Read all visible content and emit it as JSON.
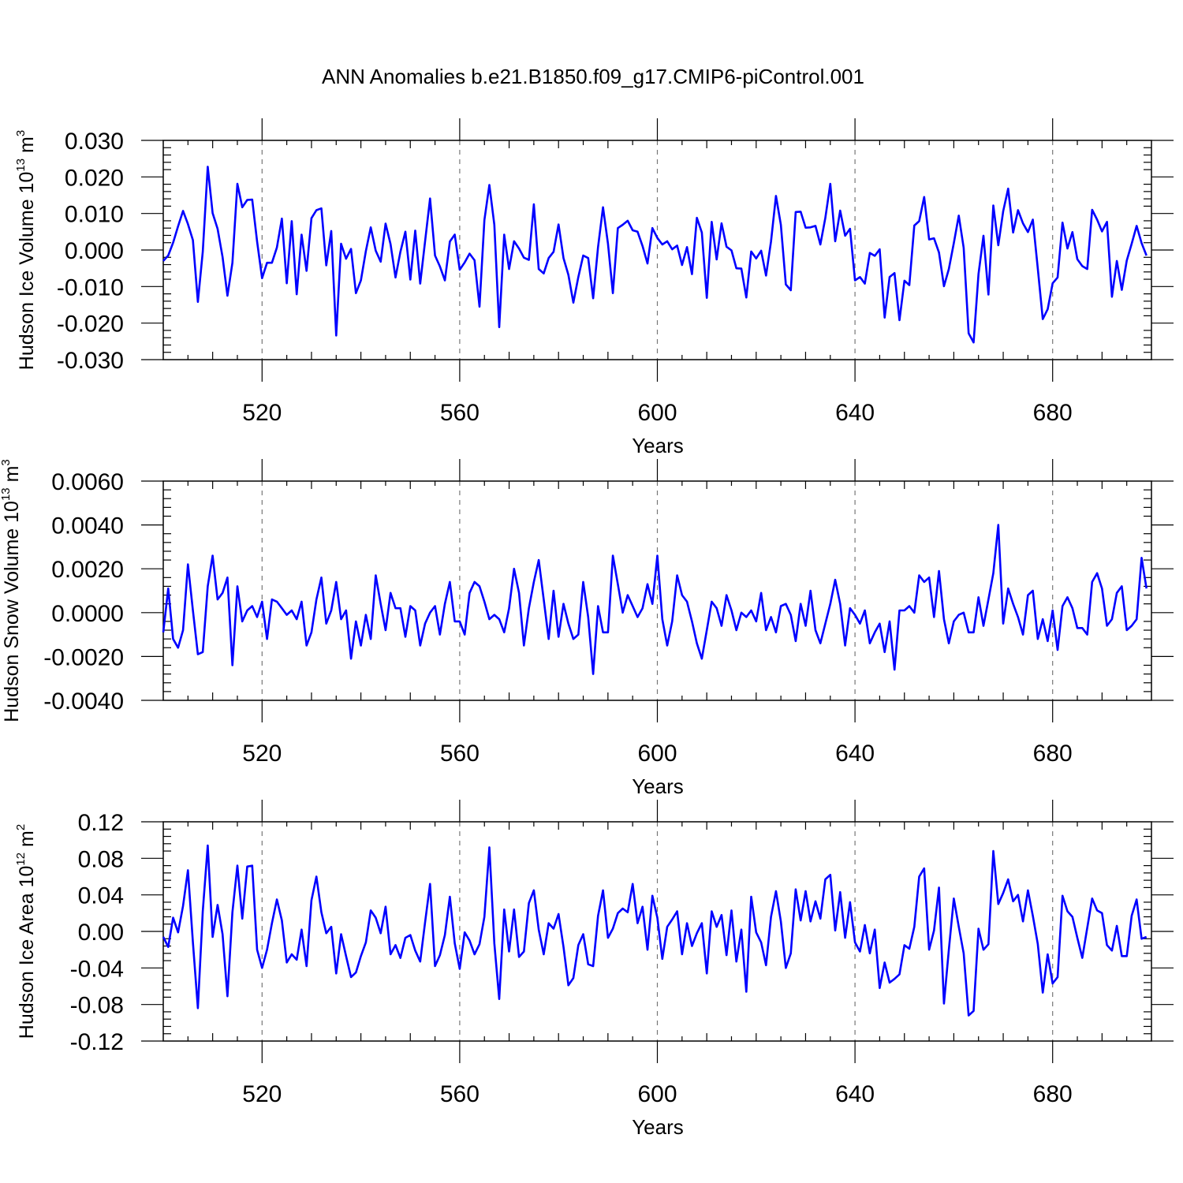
{
  "title": "ANN Anomalies b.e21.B1850.f09_g17.CMIP6-piControl.001",
  "colors": {
    "series": "#0000ff",
    "axis": "#000000",
    "grid": "#777777"
  },
  "chart_data": [
    {
      "type": "line",
      "ylabel": {
        "main": "Hudson Ice Volume 10",
        "exponent": "13",
        "unit": " m",
        "unit_exponent": "3"
      },
      "xlabel": "Years",
      "xlim": [
        500,
        700
      ],
      "xticks": [
        520,
        560,
        600,
        640,
        680
      ],
      "xtick_labels": [
        "520",
        "560",
        "600",
        "640",
        "680"
      ],
      "ylim": [
        -0.03,
        0.03
      ],
      "yticks": [
        0.03,
        0.02,
        0.01,
        0.0,
        -0.01,
        -0.02,
        -0.03
      ],
      "ytick_labels": [
        "0.030",
        "0.020",
        "0.010",
        "0.000",
        "-0.010",
        "-0.020",
        "-0.030"
      ],
      "grid_x": [
        520,
        560,
        600,
        640,
        680
      ],
      "series": [
        {
          "name": "Hudson Ice Volume anomaly",
          "x_start": 500,
          "x_step": 1,
          "values": [
            -0.003,
            -0.0015,
            0.002,
            0.0065,
            0.0107,
            0.0071,
            0.0027,
            -0.0142,
            -0.0005,
            0.0228,
            0.0101,
            0.0058,
            -0.0019,
            -0.0125,
            -0.0035,
            0.0181,
            0.0117,
            0.0137,
            0.0138,
            0.0023,
            -0.0077,
            -0.0035,
            -0.0035,
            0.0007,
            0.0086,
            -0.0091,
            0.0079,
            -0.0121,
            0.0042,
            -0.0057,
            0.0087,
            0.0109,
            0.0114,
            -0.0042,
            0.0052,
            -0.0234,
            0.0017,
            -0.0024,
            0.0003,
            -0.0118,
            -0.0083,
            -0.0003,
            0.0062,
            -0.0002,
            -0.0032,
            0.0072,
            0.0016,
            -0.0075,
            -0.0005,
            0.005,
            -0.0081,
            0.0053,
            -0.0092,
            0.0024,
            0.0141,
            -0.0015,
            -0.0045,
            -0.0083,
            0.0023,
            0.0042,
            -0.0054,
            -0.0034,
            -0.001,
            -0.0028,
            -0.0155,
            0.0082,
            0.0178,
            0.0069,
            -0.0211,
            0.0042,
            -0.0052,
            0.0024,
            0.0004,
            -0.0021,
            -0.0027,
            0.0125,
            -0.0052,
            -0.0064,
            -0.0022,
            -0.0005,
            0.007,
            -0.0022,
            -0.0068,
            -0.0144,
            -0.0074,
            -0.0015,
            -0.0022,
            -0.0132,
            0.0008,
            0.0117,
            0.0017,
            -0.0118,
            0.006,
            0.0069,
            0.008,
            0.0054,
            0.005,
            0.0011,
            -0.0037,
            0.006,
            0.0033,
            0.0015,
            0.0024,
            0.0002,
            0.0012,
            -0.0041,
            0.0008,
            -0.0066,
            0.0088,
            0.0048,
            -0.0131,
            0.0077,
            -0.0026,
            0.0073,
            0.0009,
            -0.0001,
            -0.005,
            -0.0051,
            -0.013,
            -0.0004,
            -0.0023,
            -0.0002,
            -0.007,
            0.0023,
            0.0148,
            0.0069,
            -0.0094,
            -0.011,
            0.0104,
            0.0105,
            0.0061,
            0.0062,
            0.0066,
            0.0015,
            0.0088,
            0.0181,
            0.0024,
            0.0108,
            0.0039,
            0.0058,
            -0.0083,
            -0.0074,
            -0.0092,
            -0.0008,
            -0.0016,
            0.0002,
            -0.0185,
            -0.0074,
            -0.0063,
            -0.0192,
            -0.0084,
            -0.0096,
            0.0067,
            0.0079,
            0.0145,
            0.0029,
            0.0032,
            -0.0007,
            -0.0099,
            -0.0052,
            0.0019,
            0.0094,
            0.0006,
            -0.0228,
            -0.0253,
            -0.0066,
            0.0039,
            -0.0122,
            0.0122,
            0.0013,
            0.0106,
            0.0168,
            0.0048,
            0.0109,
            0.0073,
            0.0049,
            0.0083,
            -0.0051,
            -0.0189,
            -0.0162,
            -0.0091,
            -0.0075,
            0.0075,
            0.0004,
            0.0049,
            -0.0025,
            -0.0044,
            -0.0052,
            0.011,
            0.0083,
            0.0051,
            0.0077,
            -0.0128,
            -0.003,
            -0.0109,
            -0.0029,
            0.0017,
            0.0066,
            0.0019,
            -0.0015
          ]
        }
      ]
    },
    {
      "type": "line",
      "ylabel": {
        "main": "Hudson Snow Volume 10",
        "exponent": "13",
        "unit": " m",
        "unit_exponent": "3"
      },
      "xlabel": "Years",
      "xlim": [
        500,
        700
      ],
      "xticks": [
        520,
        560,
        600,
        640,
        680
      ],
      "xtick_labels": [
        "520",
        "560",
        "600",
        "640",
        "680"
      ],
      "ylim": [
        -0.004,
        0.006
      ],
      "yticks": [
        0.006,
        0.004,
        0.002,
        0.0,
        -0.002,
        -0.004
      ],
      "ytick_labels": [
        "0.0060",
        "0.0040",
        "0.0020",
        "0.0000",
        "-0.0020",
        "-0.0040"
      ],
      "grid_x": [
        520,
        560,
        600,
        640,
        680
      ],
      "series": [
        {
          "name": "Hudson Snow Volume anomaly",
          "x_start": 500,
          "x_step": 1,
          "values": [
            -0.0009,
            0.0011,
            -0.0012,
            -0.0016,
            -0.0008,
            0.0022,
            0.0001,
            -0.0019,
            -0.0018,
            0.0012,
            0.0026,
            0.0006,
            0.0009,
            0.0016,
            -0.0024,
            0.0012,
            -0.0004,
            0.0001,
            0.0003,
            -0.0002,
            0.0005,
            -0.0012,
            0.0006,
            0.0005,
            0.0002,
            -0.0001,
            0.0001,
            -0.0003,
            0.0005,
            -0.0015,
            -0.0009,
            0.0006,
            0.0016,
            -0.0005,
            0.0001,
            0.0014,
            -0.0003,
            0.0001,
            -0.0021,
            -0.0004,
            -0.0015,
            -0.0001,
            -0.0012,
            0.0017,
            0.0004,
            -0.0008,
            0.0009,
            0.0002,
            0.0002,
            -0.0011,
            0.0003,
            0.0001,
            -0.0015,
            -0.0005,
            0.0,
            0.0003,
            -0.001,
            0.0004,
            0.0014,
            -0.0004,
            -0.0004,
            -0.001,
            0.0009,
            0.0014,
            0.0012,
            0.0005,
            -0.0003,
            -0.0001,
            -0.0003,
            -0.0009,
            0.0002,
            0.002,
            0.0009,
            -0.0015,
            0.0002,
            0.0014,
            0.0024,
            0.0006,
            -0.0012,
            0.001,
            -0.0011,
            0.0004,
            -0.0005,
            -0.0012,
            -0.001,
            0.0014,
            -0.0002,
            -0.0028,
            0.0003,
            -0.0009,
            -0.0009,
            0.0026,
            0.0013,
            0.0,
            0.0008,
            0.0003,
            -0.0002,
            0.0002,
            0.0013,
            0.0004,
            0.0026,
            -0.0003,
            -0.0015,
            -0.0004,
            0.0017,
            0.0008,
            0.0005,
            -0.0004,
            -0.0014,
            -0.0021,
            -0.0008,
            0.0005,
            0.0002,
            -0.0006,
            0.0008,
            0.0001,
            -0.0008,
            0.0,
            -0.0002,
            0.0001,
            -0.0004,
            0.0009,
            -0.0008,
            -0.0002,
            -0.0009,
            0.0003,
            0.0004,
            -0.0001,
            -0.0013,
            0.0004,
            -0.0006,
            0.001,
            -0.0008,
            -0.0014,
            -0.0005,
            0.0004,
            0.0015,
            0.0004,
            -0.0015,
            0.0002,
            -0.0001,
            -0.0005,
            0.0001,
            -0.0014,
            -0.0009,
            -0.0005,
            -0.0018,
            -0.0004,
            -0.0026,
            0.0001,
            0.0001,
            0.0003,
            0.0,
            0.0017,
            0.0014,
            0.0016,
            -0.0002,
            0.0019,
            -0.0003,
            -0.0014,
            -0.0004,
            -0.0001,
            0.0,
            -0.0009,
            -0.0009,
            0.0007,
            -0.0006,
            0.0006,
            0.0018,
            0.004,
            -0.0005,
            0.0011,
            0.0004,
            -0.0002,
            -0.001,
            0.0008,
            0.001,
            -0.0012,
            -0.0003,
            -0.0013,
            0.0001,
            -0.0017,
            0.0003,
            0.0007,
            0.0002,
            -0.0007,
            -0.0007,
            -0.001,
            0.0014,
            0.0018,
            0.0011,
            -0.0006,
            -0.0003,
            0.0009,
            0.0012,
            -0.0008,
            -0.0006,
            -0.0003,
            0.0025,
            0.0011
          ]
        }
      ]
    },
    {
      "type": "line",
      "ylabel": {
        "main": "Hudson Ice Area 10",
        "exponent": "12",
        "unit": " m",
        "unit_exponent": "2"
      },
      "xlabel": "Years",
      "xlim": [
        500,
        700
      ],
      "xticks": [
        520,
        560,
        600,
        640,
        680
      ],
      "xtick_labels": [
        "520",
        "560",
        "600",
        "640",
        "680"
      ],
      "ylim": [
        -0.12,
        0.12
      ],
      "yticks": [
        0.12,
        0.08,
        0.04,
        0.0,
        -0.04,
        -0.08,
        -0.12
      ],
      "ytick_labels": [
        "0.12",
        "0.08",
        "0.04",
        "0.00",
        "-0.04",
        "-0.08",
        "-0.12"
      ],
      "grid_x": [
        520,
        560,
        600,
        640,
        680
      ],
      "series": [
        {
          "name": "Hudson Ice Area anomaly",
          "x_start": 500,
          "x_step": 1,
          "values": [
            -0.006,
            -0.017,
            0.015,
            -0.001,
            0.028,
            0.067,
            -0.012,
            -0.084,
            0.022,
            0.094,
            -0.006,
            0.029,
            -0.003,
            -0.071,
            0.021,
            0.072,
            0.014,
            0.071,
            0.072,
            -0.02,
            -0.04,
            -0.02,
            0.009,
            0.035,
            0.012,
            -0.034,
            -0.025,
            -0.031,
            0.002,
            -0.038,
            0.034,
            0.06,
            0.021,
            -0.002,
            0.005,
            -0.046,
            -0.003,
            -0.027,
            -0.05,
            -0.045,
            -0.027,
            -0.012,
            0.023,
            0.015,
            -0.002,
            0.027,
            -0.025,
            -0.015,
            -0.029,
            -0.007,
            -0.004,
            -0.021,
            -0.033,
            0.01,
            0.052,
            -0.038,
            -0.026,
            -0.004,
            0.038,
            -0.013,
            -0.041,
            -0.001,
            -0.01,
            -0.025,
            -0.014,
            0.016,
            0.092,
            -0.013,
            -0.074,
            0.024,
            -0.022,
            0.024,
            -0.028,
            -0.022,
            0.031,
            0.045,
            0.002,
            -0.025,
            0.009,
            0.003,
            0.019,
            -0.017,
            -0.059,
            -0.051,
            -0.015,
            -0.003,
            -0.036,
            -0.038,
            0.017,
            0.045,
            -0.007,
            0.003,
            0.02,
            0.025,
            0.021,
            0.052,
            0.009,
            0.027,
            -0.02,
            0.039,
            0.015,
            -0.03,
            0.005,
            0.013,
            0.022,
            -0.025,
            0.009,
            -0.016,
            -0.002,
            0.009,
            -0.046,
            0.022,
            0.005,
            0.018,
            -0.026,
            0.023,
            -0.033,
            0.002,
            -0.066,
            0.038,
            -0.001,
            -0.012,
            -0.037,
            0.016,
            0.044,
            0.011,
            -0.04,
            -0.024,
            0.046,
            0.012,
            0.044,
            0.011,
            0.033,
            0.014,
            0.057,
            0.062,
            0.001,
            0.043,
            -0.007,
            0.032,
            -0.012,
            -0.022,
            0.007,
            -0.024,
            0.002,
            -0.062,
            -0.034,
            -0.056,
            -0.052,
            -0.047,
            -0.015,
            -0.019,
            0.005,
            0.06,
            0.069,
            -0.02,
            0.001,
            0.048,
            -0.079,
            -0.02,
            0.036,
            0.005,
            -0.024,
            -0.092,
            -0.087,
            0.003,
            -0.02,
            -0.014,
            0.088,
            0.03,
            0.042,
            0.057,
            0.033,
            0.04,
            0.011,
            0.045,
            0.017,
            -0.014,
            -0.067,
            -0.025,
            -0.057,
            -0.05,
            0.039,
            0.022,
            0.016,
            -0.007,
            -0.029,
            0.004,
            0.036,
            0.023,
            0.02,
            -0.015,
            -0.021,
            0.006,
            -0.027,
            -0.027,
            0.017,
            0.035,
            -0.008,
            -0.006
          ]
        }
      ]
    }
  ]
}
